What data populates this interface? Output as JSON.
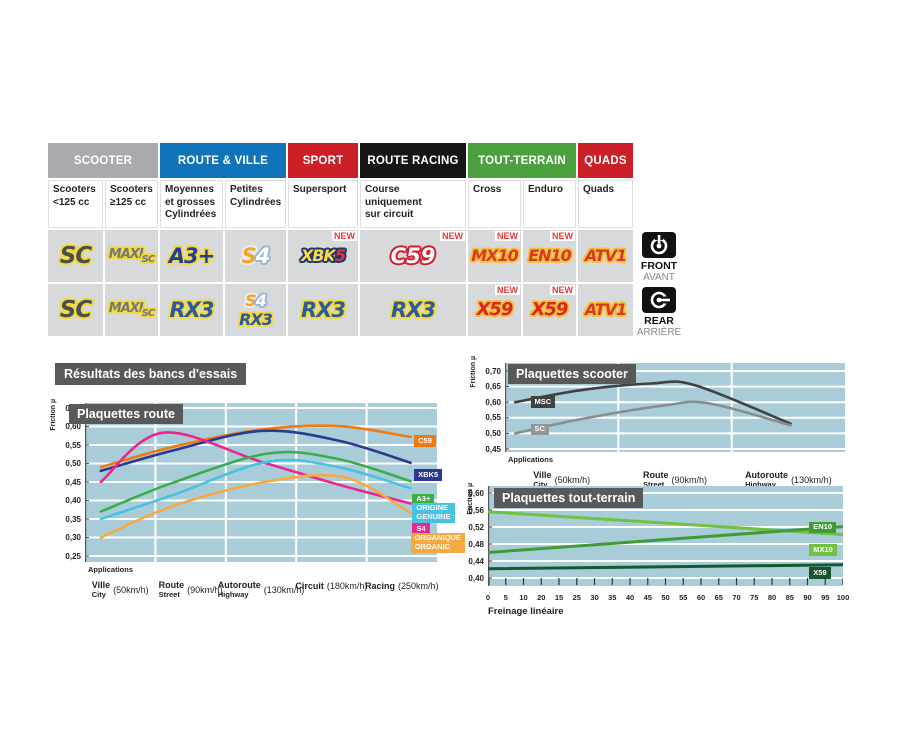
{
  "heading": "Résultats des bancs d'essais",
  "table": {
    "groups": [
      {
        "label": "SCOOTER",
        "color": "#a8aaad"
      },
      {
        "label": "ROUTE & VILLE",
        "color": "#1173ba"
      },
      {
        "label": "SPORT",
        "color": "#cb2027"
      },
      {
        "label": "ROUTE RACING",
        "color": "#161616"
      },
      {
        "label": "TOUT-TERRAIN",
        "color": "#4ba13e"
      },
      {
        "label": "QUADS",
        "color": "#cb2027"
      }
    ],
    "subheaders": [
      "Scooters\n<125 cc",
      "Scooters\n≥125 cc",
      "Moyennes\net grosses\nCylindrées",
      "Petites\nCylindrées",
      "Supersport",
      "Course\nuniquement\nsur circuit",
      "Cross",
      "Enduro",
      "Quads"
    ],
    "new_tag": "NEW",
    "front": {
      "label": "FRONT",
      "sub": "AVANT"
    },
    "rear": {
      "label": "REAR",
      "sub": "ARRIÈRE"
    }
  },
  "badges": {
    "sc": "SC",
    "maxi": "MAXI",
    "maxi_sc": "SC",
    "a3": "A3+",
    "s4_s": "S",
    "s4_4": "4",
    "xbk": "XBK",
    "xbk_5": "5",
    "c59": "C59",
    "mx10": "MX10",
    "en10": "EN10",
    "atv1": "ATV1",
    "rx3": "RX3",
    "x59": "X59"
  },
  "chart_data": [
    {
      "id": "route",
      "type": "line",
      "title": "Plaquettes route",
      "ylabel": "Friction µ",
      "applications_label": "Applications",
      "ylim": [
        0.25,
        0.65
      ],
      "yticks": [
        "0,65",
        "0,60",
        "0,55",
        "0,50",
        "0,45",
        "0,40",
        "0,35",
        "0,30",
        "0,25"
      ],
      "vgrid": [
        0.2,
        0.4,
        0.6,
        0.8
      ],
      "x_zones": [
        {
          "main": "Ville",
          "sub": "City",
          "speed": "(50km/h)"
        },
        {
          "main": "Route",
          "sub": "Street",
          "speed": "(90km/h)"
        },
        {
          "main": "Autoroute",
          "sub": "Highway",
          "speed": "(130km/h)"
        },
        {
          "main": "Circuit",
          "sub": "",
          "speed": "(180km/h)"
        },
        {
          "main": "Racing",
          "sub": "",
          "speed": "(250km/h)"
        }
      ],
      "series": [
        {
          "name": "C59",
          "color": "#ef7b10",
          "x": [
            0.045,
            0.25,
            0.5,
            0.72,
            0.925
          ],
          "y": [
            0.49,
            0.545,
            0.592,
            0.601,
            0.572
          ]
        },
        {
          "name": "XBK5",
          "color": "#2b3990",
          "x": [
            0.045,
            0.25,
            0.5,
            0.72,
            0.925
          ],
          "y": [
            0.48,
            0.535,
            0.588,
            0.562,
            0.502
          ]
        },
        {
          "name": "S4",
          "color": "#ec268f",
          "x": [
            0.045,
            0.22,
            0.5,
            0.72,
            0.925
          ],
          "y": [
            0.45,
            0.583,
            0.505,
            0.443,
            0.392
          ]
        },
        {
          "name": "A3+",
          "color": "#3aae49",
          "x": [
            0.045,
            0.25,
            0.52,
            0.72,
            0.925
          ],
          "y": [
            0.37,
            0.448,
            0.527,
            0.512,
            0.452
          ]
        },
        {
          "name": "ORIGINE / GENUINE",
          "color": "#4ac1e0",
          "x": [
            0.045,
            0.25,
            0.52,
            0.72,
            0.925
          ],
          "y": [
            0.35,
            0.415,
            0.505,
            0.49,
            0.433
          ]
        },
        {
          "name": "ORGANIQUE / ORGANIC",
          "color": "#f7a941",
          "x": [
            0.045,
            0.25,
            0.52,
            0.74,
            0.925
          ],
          "y": [
            0.3,
            0.385,
            0.452,
            0.462,
            0.366
          ]
        }
      ],
      "legend": [
        {
          "label": "C59",
          "color": "#ef7b10",
          "x": 0.935,
          "y": 0.561
        },
        {
          "label": "XBK5",
          "color": "#2b3990",
          "x": 0.935,
          "y": 0.469
        },
        {
          "label": "A3+",
          "color": "#3aae49",
          "x": 0.93,
          "y": 0.404
        },
        {
          "label": "ORIGINE\nGENUINE",
          "color": "#4ac1e0",
          "x": 0.93,
          "y": 0.369
        },
        {
          "label": "S4",
          "color": "#ec268f",
          "x": 0.93,
          "y": 0.323
        },
        {
          "label": "ORGANIQUE\nORGANIC",
          "color": "#f7a941",
          "x": 0.925,
          "y": 0.288
        }
      ],
      "lw": 2.6
    },
    {
      "id": "scooter",
      "type": "line",
      "title": "Plaquettes scooter",
      "ylabel": "Friction µ",
      "applications_label": "Applications",
      "ylim": [
        0.45,
        0.7
      ],
      "yticks": [
        "0,70",
        "0,65",
        "0,60",
        "0,55",
        "0,50",
        "0,45"
      ],
      "vgrid": [
        0.3333,
        0.6667
      ],
      "x_zones": [
        {
          "main": "Ville",
          "sub": "City",
          "speed": "(50km/h)"
        },
        {
          "main": "Route",
          "sub": "Street",
          "speed": "(90km/h)"
        },
        {
          "main": "Autoroute",
          "sub": "Highway",
          "speed": "(130km/h)"
        }
      ],
      "series": [
        {
          "name": "MSC",
          "color": "#414042",
          "x": [
            0.03,
            0.22,
            0.43,
            0.56,
            0.84
          ],
          "y": [
            0.6,
            0.638,
            0.66,
            0.654,
            0.531
          ]
        },
        {
          "name": "SC",
          "color": "#8a8c8e",
          "x": [
            0.03,
            0.22,
            0.47,
            0.6,
            0.84
          ],
          "y": [
            0.5,
            0.545,
            0.59,
            0.596,
            0.526
          ]
        }
      ],
      "legend": [
        {
          "label": "MSC",
          "color": "#414042",
          "x": 0.075,
          "y": 0.602
        },
        {
          "label": "SC",
          "color": "#939598",
          "x": 0.075,
          "y": 0.513
        }
      ],
      "lw": 2.6
    },
    {
      "id": "tt",
      "type": "line",
      "title": "Plaquettes tout-terrain",
      "ylabel": "Friction µ",
      "xlabel": "Freinage linéaire",
      "ylim": [
        0.4,
        0.6
      ],
      "yticks": [
        "0,60",
        "0,56",
        "0,52",
        "0,48",
        "0,44",
        "0,40"
      ],
      "xticks": [
        "0",
        "5",
        "10",
        "20",
        "15",
        "25",
        "30",
        "35",
        "40",
        "45",
        "50",
        "55",
        "60",
        "65",
        "70",
        "75",
        "80",
        "85",
        "90",
        "95",
        "100"
      ],
      "straight": true,
      "series": [
        {
          "name": "MX10",
          "color": "#72bf44",
          "x": [
            0,
            1
          ],
          "y": [
            0.556,
            0.502
          ]
        },
        {
          "name": "EN10",
          "color": "#3f9c35",
          "x": [
            0,
            1
          ],
          "y": [
            0.46,
            0.521
          ]
        },
        {
          "name": "X59",
          "color": "#17562f",
          "x": [
            0,
            1
          ],
          "y": [
            0.422,
            0.431
          ]
        }
      ],
      "legend": [
        {
          "label": "EN10",
          "color": "#3f9c35",
          "x": 0.905,
          "y": 0.52
        },
        {
          "label": "MX10",
          "color": "#72bf44",
          "x": 0.905,
          "y": 0.466
        },
        {
          "label": "X59",
          "color": "#17562f",
          "x": 0.905,
          "y": 0.412
        }
      ],
      "lw": 3
    }
  ]
}
